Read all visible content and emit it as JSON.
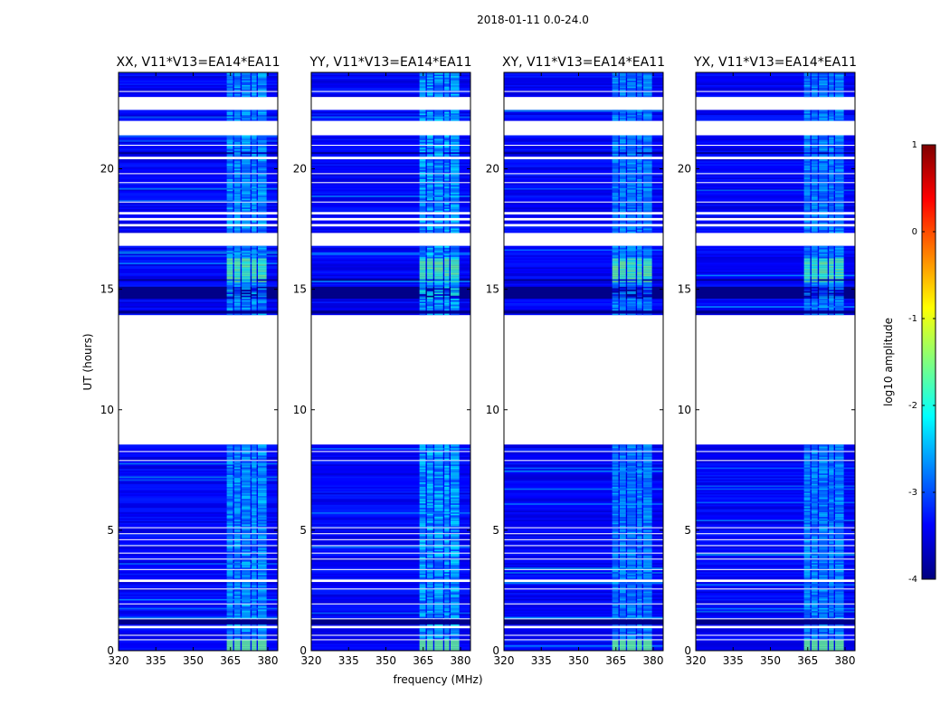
{
  "chart_data": {
    "type": "heatmap",
    "suptitle": "2018-01-11 0.0-24.0",
    "xlabel": "frequency (MHz)",
    "ylabel": "UT (hours)",
    "xlim": [
      320,
      384
    ],
    "ylim": [
      0,
      24
    ],
    "xticks": [
      320,
      335,
      350,
      365,
      380
    ],
    "yticks": [
      0,
      5,
      10,
      15,
      20
    ],
    "panels": [
      {
        "title": "XX, V11*V13=EA14*EA11",
        "rfi_strength": 0.85
      },
      {
        "title": "YY, V11*V13=EA14*EA11",
        "rfi_strength": 1.0
      },
      {
        "title": "XY, V11*V13=EA14*EA11",
        "rfi_strength": 0.7
      },
      {
        "title": "YX, V11*V13=EA14*EA11",
        "rfi_strength": 0.72
      }
    ],
    "data_blocks_hours": [
      [
        0.0,
        8.5
      ],
      [
        13.9,
        24.0
      ]
    ],
    "flagged_gap_hours": [
      8.5,
      13.9
    ],
    "rfi_band_mhz": [
      363,
      380
    ],
    "typical_log10_amplitude": -3.4,
    "colorbar": {
      "label": "log10 amplitude",
      "range": [
        -4,
        1
      ],
      "ticks": [
        -4,
        -3,
        -2,
        -1,
        0,
        1
      ],
      "colormap": [
        "#00007f",
        "#0000ff",
        "#007fff",
        "#00ffff",
        "#7fff7f",
        "#ffff00",
        "#ff7f00",
        "#ff0000",
        "#7f0000"
      ]
    }
  }
}
